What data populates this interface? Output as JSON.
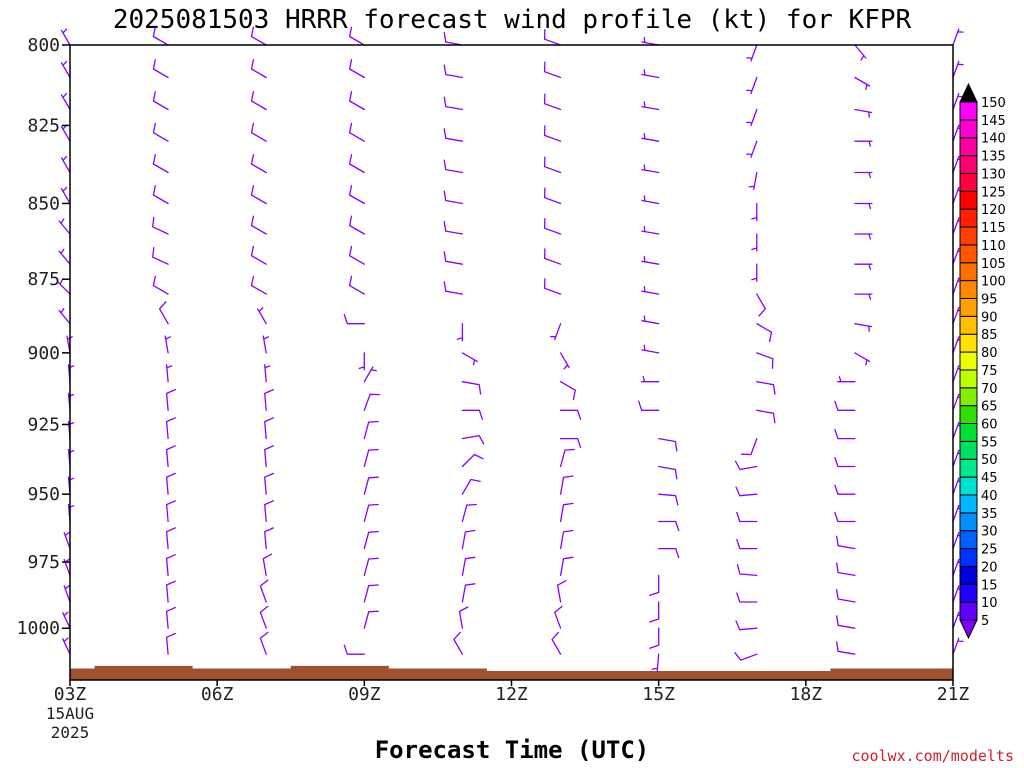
{
  "chart_data": {
    "type": "wind-profile",
    "title": "2025081503 HRRR forecast wind profile (kt) for KFPR",
    "xlabel": "Forecast Time (UTC)",
    "credit": "coolwx.com/modelts",
    "y_axis": {
      "label": "",
      "ticks": [
        800,
        825,
        850,
        875,
        900,
        925,
        950,
        975,
        1000
      ],
      "range_hPa": [
        800,
        1020
      ],
      "scale": "log-pressure"
    },
    "x_axis": {
      "ticks": [
        "03Z",
        "06Z",
        "09Z",
        "12Z",
        "15Z",
        "18Z",
        "21Z"
      ],
      "first_tick_date": "15AUG",
      "first_tick_year": "2025",
      "range_hours": [
        3,
        21
      ]
    },
    "colorbar": {
      "values": [
        5,
        10,
        15,
        20,
        25,
        30,
        35,
        40,
        45,
        50,
        55,
        60,
        65,
        70,
        75,
        80,
        85,
        90,
        95,
        100,
        105,
        110,
        115,
        120,
        125,
        130,
        135,
        140,
        145,
        150
      ],
      "colors": [
        "#8000ff",
        "#6000ff",
        "#2000ff",
        "#0000dd",
        "#0030ff",
        "#0060ff",
        "#0090ff",
        "#00b8ff",
        "#00e0d0",
        "#00e890",
        "#00e060",
        "#00e030",
        "#30e000",
        "#80f000",
        "#c0ff00",
        "#f0ff00",
        "#ffe000",
        "#ffc000",
        "#ffa000",
        "#ff8800",
        "#ff7000",
        "#ff5800",
        "#ff4000",
        "#ff2000",
        "#ff0000",
        "#ff0040",
        "#ff0070",
        "#ff00a0",
        "#ff00d0",
        "#ff00ff"
      ]
    },
    "terrain": {
      "color": "#a0522d",
      "surface_pressure": [
        {
          "hour": 3,
          "hPa": 1015.5
        },
        {
          "hour": 3.5,
          "hPa": 1014.5
        },
        {
          "hour": 5.5,
          "hPa": 1015.5
        },
        {
          "hour": 7.5,
          "hPa": 1014.5
        },
        {
          "hour": 9.5,
          "hPa": 1015.5
        },
        {
          "hour": 11.5,
          "hPa": 1016.5
        },
        {
          "hour": 18.5,
          "hPa": 1015.5
        },
        {
          "hour": 21,
          "hPa": 1015.5
        }
      ]
    },
    "barb_hours": [
      3,
      5,
      7,
      9,
      11,
      13,
      15,
      17,
      19,
      21
    ],
    "barb_levels": [
      800,
      810,
      820,
      830,
      840,
      850,
      860,
      870,
      880,
      890,
      900,
      910,
      920,
      930,
      940,
      950,
      960,
      970,
      980,
      990,
      1000,
      1010
    ],
    "barb_color": "#8a00ff",
    "winds_by_hour": [
      {
        "hour": 3,
        "dir": [
          330,
          330,
          330,
          330,
          330,
          330,
          320,
          320,
          315,
          320,
          350,
          355,
          355,
          355,
          355,
          355,
          355,
          340,
          340,
          340,
          335,
          335
        ],
        "spd": [
          5,
          5,
          5,
          5,
          5,
          5,
          5,
          5,
          5,
          5,
          5,
          5,
          5,
          5,
          5,
          5,
          5,
          5,
          5,
          5,
          5,
          5
        ]
      },
      {
        "hour": 5,
        "dir": [
          300,
          300,
          300,
          300,
          300,
          300,
          295,
          295,
          300,
          330,
          350,
          355,
          355,
          355,
          355,
          355,
          355,
          355,
          355,
          355,
          355,
          355
        ],
        "spd": [
          10,
          10,
          10,
          10,
          10,
          10,
          10,
          10,
          10,
          10,
          5,
          5,
          10,
          10,
          10,
          10,
          10,
          10,
          10,
          10,
          10,
          10
        ]
      },
      {
        "hour": 7,
        "dir": [
          300,
          300,
          300,
          300,
          300,
          300,
          300,
          300,
          300,
          330,
          350,
          355,
          355,
          355,
          355,
          355,
          355,
          355,
          350,
          340,
          340,
          340
        ],
        "spd": [
          10,
          10,
          10,
          10,
          10,
          10,
          10,
          10,
          10,
          5,
          5,
          5,
          10,
          10,
          10,
          10,
          10,
          10,
          10,
          10,
          10,
          10
        ]
      },
      {
        "hour": 9,
        "dir": [
          300,
          300,
          300,
          300,
          300,
          300,
          300,
          300,
          300,
          270,
          180,
          30,
          20,
          15,
          15,
          15,
          15,
          15,
          15,
          15,
          15,
          270
        ],
        "spd": [
          10,
          10,
          10,
          10,
          10,
          10,
          10,
          10,
          10,
          10,
          5,
          5,
          10,
          10,
          10,
          10,
          10,
          10,
          10,
          10,
          10,
          10
        ]
      },
      {
        "hour": 11,
        "dir": [
          280,
          280,
          280,
          280,
          280,
          280,
          280,
          280,
          280,
          180,
          120,
          100,
          90,
          80,
          45,
          30,
          15,
          10,
          10,
          10,
          350,
          330
        ],
        "spd": [
          10,
          10,
          10,
          10,
          10,
          10,
          10,
          10,
          10,
          5,
          5,
          10,
          10,
          10,
          10,
          10,
          10,
          10,
          10,
          10,
          10,
          10
        ]
      },
      {
        "hour": 13,
        "dir": [
          290,
          290,
          290,
          290,
          290,
          290,
          290,
          290,
          290,
          200,
          150,
          120,
          90,
          90,
          15,
          10,
          10,
          10,
          10,
          350,
          340,
          330
        ],
        "spd": [
          10,
          10,
          10,
          10,
          10,
          10,
          10,
          10,
          10,
          5,
          5,
          10,
          10,
          10,
          10,
          10,
          10,
          10,
          10,
          10,
          10,
          10
        ]
      },
      {
        "hour": 15,
        "dir": [
          280,
          280,
          280,
          280,
          280,
          280,
          280,
          280,
          280,
          280,
          280,
          270,
          270,
          100,
          100,
          95,
          90,
          90,
          180,
          180,
          180,
          185
        ],
        "spd": [
          5,
          5,
          5,
          5,
          5,
          5,
          5,
          5,
          5,
          5,
          5,
          5,
          10,
          10,
          10,
          10,
          10,
          10,
          10,
          10,
          10,
          5
        ]
      },
      {
        "hour": 17,
        "dir": [
          200,
          200,
          200,
          200,
          190,
          180,
          180,
          180,
          150,
          120,
          110,
          100,
          100,
          200,
          260,
          265,
          270,
          270,
          275,
          270,
          265,
          250
        ],
        "spd": [
          5,
          5,
          5,
          5,
          5,
          5,
          5,
          5,
          10,
          10,
          10,
          10,
          10,
          10,
          10,
          10,
          10,
          10,
          10,
          10,
          10,
          10
        ]
      },
      {
        "hour": 19,
        "dir": [
          140,
          120,
          100,
          90,
          90,
          90,
          90,
          90,
          90,
          100,
          120,
          270,
          270,
          270,
          270,
          270,
          270,
          280,
          280,
          280,
          280,
          280
        ],
        "spd": [
          5,
          5,
          5,
          5,
          5,
          5,
          5,
          5,
          5,
          5,
          5,
          5,
          10,
          10,
          10,
          10,
          10,
          10,
          10,
          10,
          10,
          10
        ]
      },
      {
        "hour": 21,
        "dir": [
          20,
          20,
          20,
          20,
          20,
          20,
          20,
          20,
          20,
          20,
          20,
          20,
          20,
          20,
          20,
          20,
          20,
          20,
          20,
          20,
          20,
          20
        ],
        "spd": [
          5,
          5,
          5,
          5,
          5,
          5,
          5,
          5,
          5,
          5,
          5,
          5,
          5,
          5,
          5,
          5,
          5,
          5,
          5,
          5,
          5,
          5
        ]
      }
    ]
  }
}
